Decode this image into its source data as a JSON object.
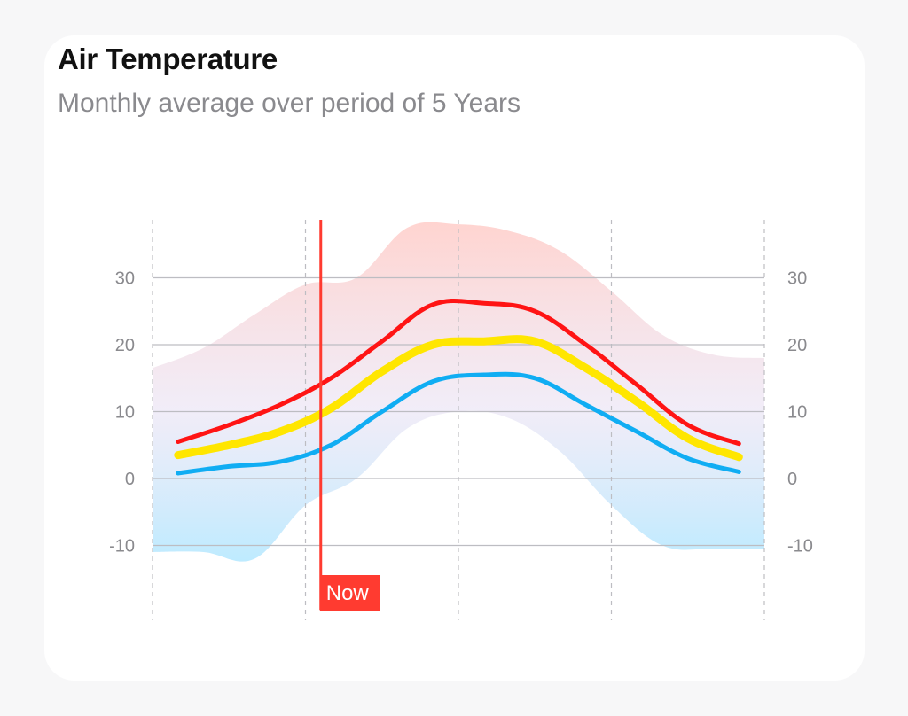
{
  "header": {
    "title": "Air Temperature",
    "subtitle": "Monthly average over period of 5 Years"
  },
  "now_marker": {
    "label": "Now",
    "month_index": 3.3
  },
  "colors": {
    "max": "#ff1414",
    "avg": "#ffe600",
    "min": "#10adf3",
    "now": "#ff3b30",
    "range_top": "#ffbdb7",
    "range_bottom": "#a8e4ff",
    "grid": "#bdbdc2"
  },
  "chart_data": {
    "type": "line",
    "title": "Air Temperature",
    "subtitle": "Monthly average over period of 5 Years",
    "x": [
      0.5,
      1.5,
      2.5,
      3.5,
      4.5,
      5.5,
      6.5,
      7.5,
      8.5,
      9.5,
      10.5,
      11.5
    ],
    "ylim": [
      -20,
      39
    ],
    "yticks": [
      30,
      20,
      10,
      0,
      -10
    ],
    "ytick_labels": [
      "30",
      "20",
      "10",
      "0",
      "-10"
    ],
    "xgrid": [
      0,
      3,
      6,
      9,
      12
    ],
    "grid": true,
    "series": [
      {
        "key": "max",
        "values": [
          5.5,
          8.0,
          11.0,
          15.0,
          20.5,
          26.0,
          26.2,
          25.0,
          20.0,
          14.0,
          8.0,
          5.2
        ]
      },
      {
        "key": "avg",
        "values": [
          3.5,
          5.0,
          7.0,
          10.5,
          16.0,
          20.0,
          20.5,
          20.5,
          16.5,
          11.5,
          6.0,
          3.2
        ]
      },
      {
        "key": "min",
        "values": [
          0.8,
          1.8,
          2.5,
          5.0,
          10.0,
          14.5,
          15.5,
          15.0,
          11.0,
          7.0,
          3.0,
          1.0
        ]
      }
    ],
    "range": {
      "x": [
        0,
        1,
        2,
        3,
        4,
        5,
        6,
        7,
        8,
        9,
        10,
        11,
        12
      ],
      "upper": [
        16.5,
        19.5,
        24.5,
        29,
        30,
        37.5,
        38,
        37,
        34,
        28,
        21.5,
        18.5,
        18
      ],
      "lower": [
        -11,
        -11,
        -12,
        -4,
        0,
        7.5,
        10,
        9,
        4,
        -4,
        -10,
        -10.5,
        -10.5
      ]
    }
  }
}
